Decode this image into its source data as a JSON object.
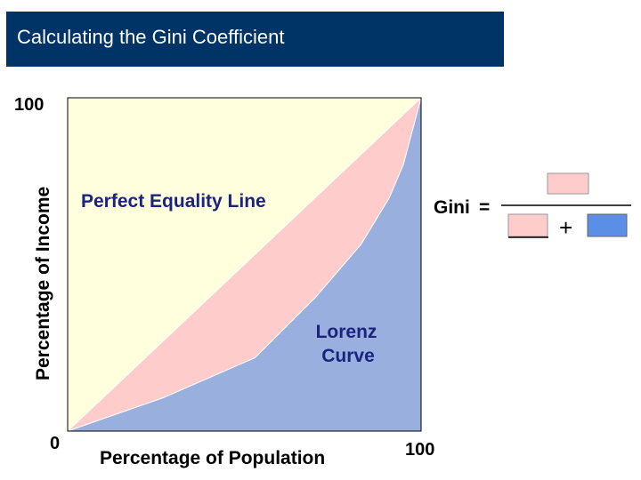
{
  "title": "Calculating the Gini Coefficient",
  "chart_data": {
    "type": "area",
    "title": "",
    "xlabel": "Percentage of Population",
    "ylabel": "Percentage of Income",
    "xlim": [
      0,
      100
    ],
    "ylim": [
      0,
      100
    ],
    "x_tick_labels": [
      "0",
      "100"
    ],
    "y_tick_labels": [
      "100"
    ],
    "origin_label": "0",
    "end_label": "100",
    "grid": false,
    "series": [
      {
        "name": "Perfect Equality Line",
        "x": [
          0,
          100
        ],
        "y": [
          0,
          100
        ]
      },
      {
        "name": "Lorenz Curve",
        "x": [
          0,
          27,
          53,
          70,
          83,
          91,
          95,
          100
        ],
        "y": [
          0,
          10,
          22,
          40,
          56,
          70,
          80,
          100
        ]
      }
    ],
    "annotations": {
      "equality_label": "Perfect Equality Line",
      "lorenz_label_line1": "Lorenz",
      "lorenz_label_line2": "Curve"
    },
    "region_colors": {
      "background": "#ffffdd",
      "between": "#ffcccc",
      "below": "#99afdd"
    }
  },
  "formula": {
    "label": "Gini",
    "equals": "=",
    "plus": "+",
    "numerator_color": "#ffcccc",
    "denominator_left_color": "#ffcccc",
    "denominator_right_color": "#5b8fe6"
  }
}
